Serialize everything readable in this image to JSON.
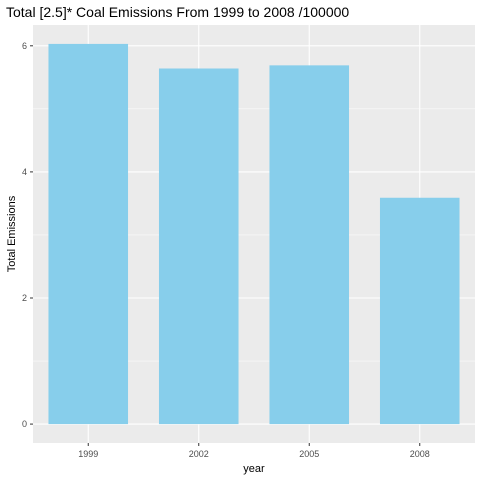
{
  "chart_data": {
    "type": "bar",
    "title": "Total [2.5]* Coal Emissions From 1999 to 2008 /100000",
    "xlabel": "year",
    "ylabel": "Total Emissions",
    "categories": [
      "1999",
      "2002",
      "2005",
      "2008"
    ],
    "values": [
      6.03,
      5.64,
      5.69,
      3.59
    ],
    "ylim": [
      -0.3,
      6.33
    ],
    "yticks": [
      0,
      2,
      4,
      6
    ],
    "grid": true,
    "bar_color": "#87CEEB",
    "panel_color": "#EBEBEB",
    "grid_color": "#FFFFFF"
  }
}
